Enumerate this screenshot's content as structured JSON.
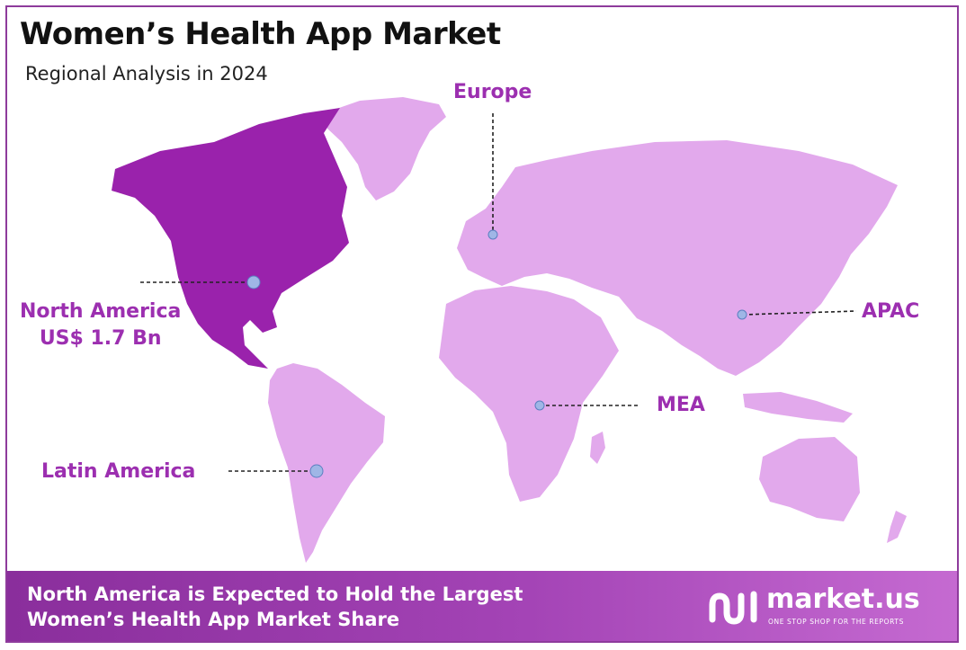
{
  "header": {
    "title": "Women’s Health App Market",
    "subtitle": "Regional Analysis in 2024"
  },
  "map": {
    "highlight_region": "North America",
    "colors": {
      "highlight": "#9a22ac",
      "land": "#e2a9ec",
      "accent_text": "#9c2fb0",
      "marker": "#9fb6e6"
    },
    "regions": [
      {
        "id": "europe",
        "label": "Europe"
      },
      {
        "id": "north-america",
        "label": "North America",
        "value": "US$ 1.7 Bn"
      },
      {
        "id": "apac",
        "label": "APAC"
      },
      {
        "id": "mea",
        "label": "MEA"
      },
      {
        "id": "latin-america",
        "label": "Latin America"
      }
    ]
  },
  "footer": {
    "line1": "North America is Expected to Hold the Largest",
    "line2": "Women’s Health App Market Share",
    "logo_text": "market.us",
    "logo_tagline": "ONE STOP SHOP FOR THE REPORTS"
  }
}
